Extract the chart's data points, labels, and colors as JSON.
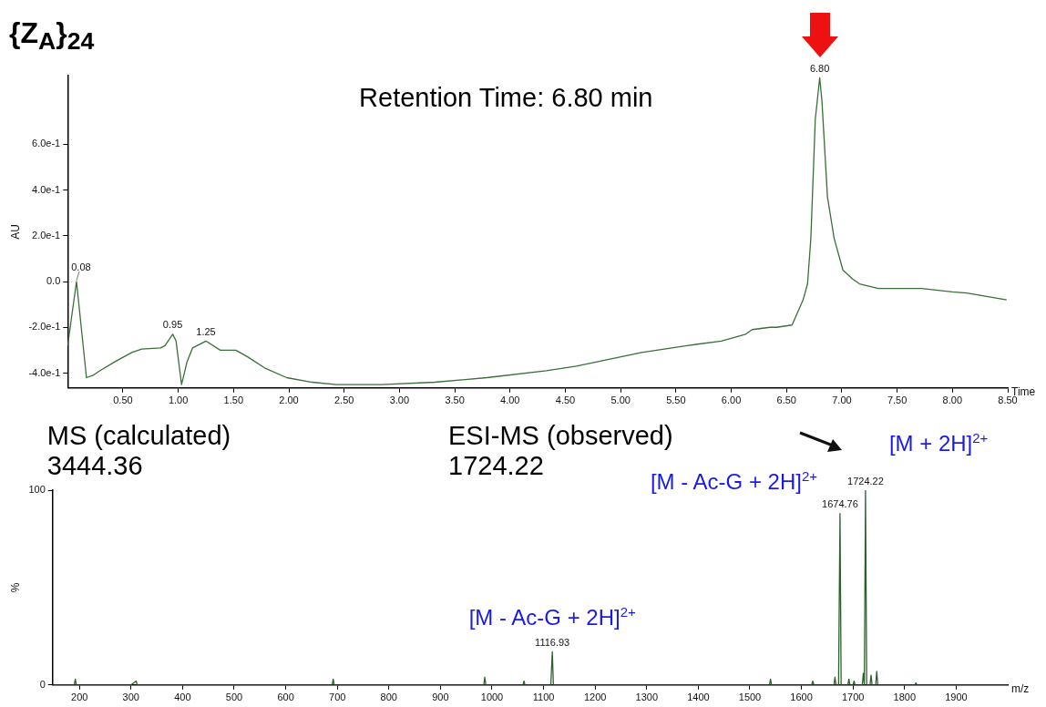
{
  "chart_data": [
    {
      "type": "line",
      "title": "{Z$_{A}$}$_{24}$",
      "xlabel": "Time",
      "ylabel": "AU",
      "color": "#3a6e3a",
      "x": [
        0,
        0.08,
        0.17,
        0.23,
        0.29,
        0.43,
        0.58,
        0.67,
        0.84,
        0.88,
        0.95,
        0.98,
        1.03,
        1.08,
        1.13,
        1.25,
        1.38,
        1.52,
        1.63,
        1.79,
        1.98,
        2.21,
        2.43,
        2.84,
        3.32,
        3.79,
        4.33,
        4.6,
        5.19,
        5.6,
        5.91,
        6.13,
        6.19,
        6.35,
        6.41,
        6.55,
        6.65,
        6.69,
        6.72,
        6.76,
        6.8,
        6.82,
        6.87,
        6.93,
        7.01,
        7.1,
        7.16,
        7.33,
        7.72,
        8.0,
        8.13,
        8.49
      ],
      "values": [
        -0.28,
        0.0,
        -0.42,
        -0.41,
        -0.39,
        -0.35,
        -0.31,
        -0.295,
        -0.29,
        -0.28,
        -0.23,
        -0.26,
        -0.45,
        -0.35,
        -0.29,
        -0.26,
        -0.3,
        -0.3,
        -0.33,
        -0.38,
        -0.42,
        -0.44,
        -0.45,
        -0.45,
        -0.44,
        -0.42,
        -0.39,
        -0.37,
        -0.31,
        -0.28,
        -0.26,
        -0.23,
        -0.21,
        -0.2,
        -0.2,
        -0.19,
        -0.08,
        -0.01,
        0.19,
        0.71,
        0.89,
        0.79,
        0.37,
        0.19,
        0.05,
        0.01,
        -0.01,
        -0.03,
        -0.03,
        -0.045,
        -0.05,
        -0.08
      ],
      "xlim": [
        0,
        8.5
      ],
      "ylim": [
        -0.465,
        0.9
      ],
      "xticks": [
        {
          "value": 0.5,
          "label": "0.50"
        },
        {
          "value": 1,
          "label": "1.00"
        },
        {
          "value": 1.5,
          "label": "1.50"
        },
        {
          "value": 2,
          "label": "2.00"
        },
        {
          "value": 2.5,
          "label": "2.50"
        },
        {
          "value": 3,
          "label": "3.00"
        },
        {
          "value": 3.5,
          "label": "3.50"
        },
        {
          "value": 4,
          "label": "4.00"
        },
        {
          "value": 4.5,
          "label": "4.50"
        },
        {
          "value": 5,
          "label": "5.00"
        },
        {
          "value": 5.5,
          "label": "5.50"
        },
        {
          "value": 6,
          "label": "6.00"
        },
        {
          "value": 6.5,
          "label": "6.50"
        },
        {
          "value": 7,
          "label": "7.00"
        },
        {
          "value": 7.5,
          "label": "7.50"
        },
        {
          "value": 8,
          "label": "8.00"
        },
        {
          "value": 8.5,
          "label": "8.50"
        }
      ],
      "yticks": [
        {
          "value": -0.4,
          "label": "-4.0e-1"
        },
        {
          "value": -0.2,
          "label": "-2.0e-1"
        },
        {
          "value": 0,
          "label": "0.0"
        },
        {
          "value": 0.2,
          "label": "2.0e-1"
        },
        {
          "value": 0.4,
          "label": "4.0e-1"
        },
        {
          "value": 0.6,
          "label": "6.0e-1"
        }
      ],
      "annotations": [
        "Retention Time: 6.80 min",
        {
          "text": "0.08",
          "x": 0.08,
          "y": 0.0
        },
        {
          "text": "0.95",
          "x": 0.95,
          "y": -0.23
        },
        {
          "text": "1.25",
          "x": 1.25,
          "y": -0.26
        },
        {
          "text": "6.80",
          "x": 6.8,
          "y": 0.89
        }
      ]
    },
    {
      "type": "line",
      "xlabel": "m/z",
      "ylabel": "%",
      "color": "#2f5f2f",
      "x": [
        148,
        190,
        192,
        194,
        300,
        310,
        312,
        690,
        692,
        694,
        984,
        986,
        988,
        1060,
        1062,
        1064,
        1114,
        1116.93,
        1119,
        1538,
        1540,
        1542,
        1620,
        1622,
        1624,
        1663,
        1665,
        1667,
        1672,
        1674.76,
        1677,
        1690,
        1692,
        1694,
        1700,
        1702,
        1704,
        1718,
        1720,
        1722,
        1724.22,
        1726.5,
        1733,
        1735,
        1737,
        1744,
        1746,
        1748,
        1820,
        1822,
        1824,
        2000
      ],
      "values": [
        0,
        0,
        3,
        0,
        0,
        2,
        0,
        0,
        3,
        0,
        0,
        4,
        0,
        0,
        2,
        0,
        0,
        17,
        0,
        0,
        3,
        0,
        0,
        2,
        0,
        0,
        4,
        0,
        0,
        88,
        0,
        0,
        3,
        0,
        0,
        2,
        0,
        0,
        6,
        0,
        100,
        0,
        0,
        5,
        0,
        0,
        7,
        0,
        0,
        1,
        0,
        0
      ],
      "xlim": [
        148,
        2000
      ],
      "ylim": [
        0,
        100
      ],
      "xticks": [
        200,
        300,
        400,
        500,
        600,
        700,
        800,
        900,
        1000,
        1100,
        1200,
        1300,
        1400,
        1500,
        1600,
        1700,
        1800,
        1900
      ],
      "yticks": [
        0,
        100
      ],
      "annotations": [
        "MS (calculated) 3444.36",
        "ESI-MS (observed) 1724.22",
        {
          "text": "1116.93",
          "x": 1116.93,
          "y": 17
        },
        {
          "text": "1674.76",
          "x": 1674.76,
          "y": 88
        },
        {
          "text": "1724.22",
          "x": 1724.22,
          "y": 100
        },
        {
          "text": "[M - Ac-G + 2H]$^{2+}$",
          "x": 1116.93,
          "y": 17
        },
        {
          "text": "[M - Ac-G + 2H]$^{2+}$",
          "x": 1674.76,
          "y": 88
        },
        {
          "text": "[M + 2H]$^{2+}$",
          "x": 1724.22,
          "y": 100
        }
      ]
    }
  ]
}
